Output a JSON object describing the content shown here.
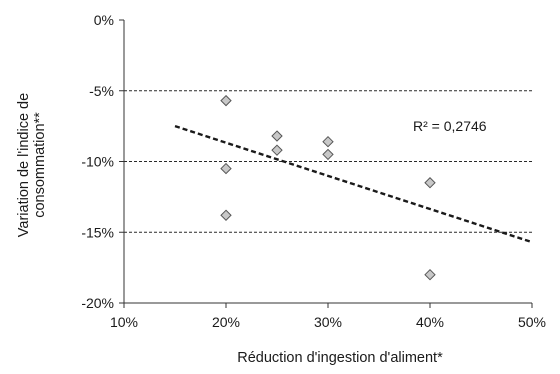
{
  "chart_data": {
    "type": "scatter",
    "xlabel": "Réduction d'ingestion d'aliment*",
    "ylabel_lines": [
      "Variation de l'indice de",
      "consommation**"
    ],
    "x_ticks": [
      "10%",
      "20%",
      "30%",
      "40%",
      "50%"
    ],
    "y_ticks": [
      "0%",
      "-5%",
      "-10%",
      "-15%",
      "-20%"
    ],
    "xlim": [
      0.1,
      0.5
    ],
    "ylim": [
      -0.2,
      0.0
    ],
    "grid": "horizontal-dashed",
    "points": [
      {
        "x": 0.2,
        "y": -0.057
      },
      {
        "x": 0.2,
        "y": -0.105
      },
      {
        "x": 0.2,
        "y": -0.138
      },
      {
        "x": 0.25,
        "y": -0.082
      },
      {
        "x": 0.25,
        "y": -0.092
      },
      {
        "x": 0.3,
        "y": -0.086
      },
      {
        "x": 0.3,
        "y": -0.095
      },
      {
        "x": 0.4,
        "y": -0.115
      },
      {
        "x": 0.4,
        "y": -0.18
      }
    ],
    "trendline": {
      "style": "dashed",
      "x": [
        0.15,
        0.5
      ],
      "y": [
        -0.075,
        -0.157
      ]
    },
    "annotation": "R² = 0,2746",
    "colors": {
      "marker_fill": "#c8c8c8",
      "marker_stroke": "#555555",
      "trendline": "#1a1a1a",
      "grid": "#2a2a2a"
    }
  }
}
